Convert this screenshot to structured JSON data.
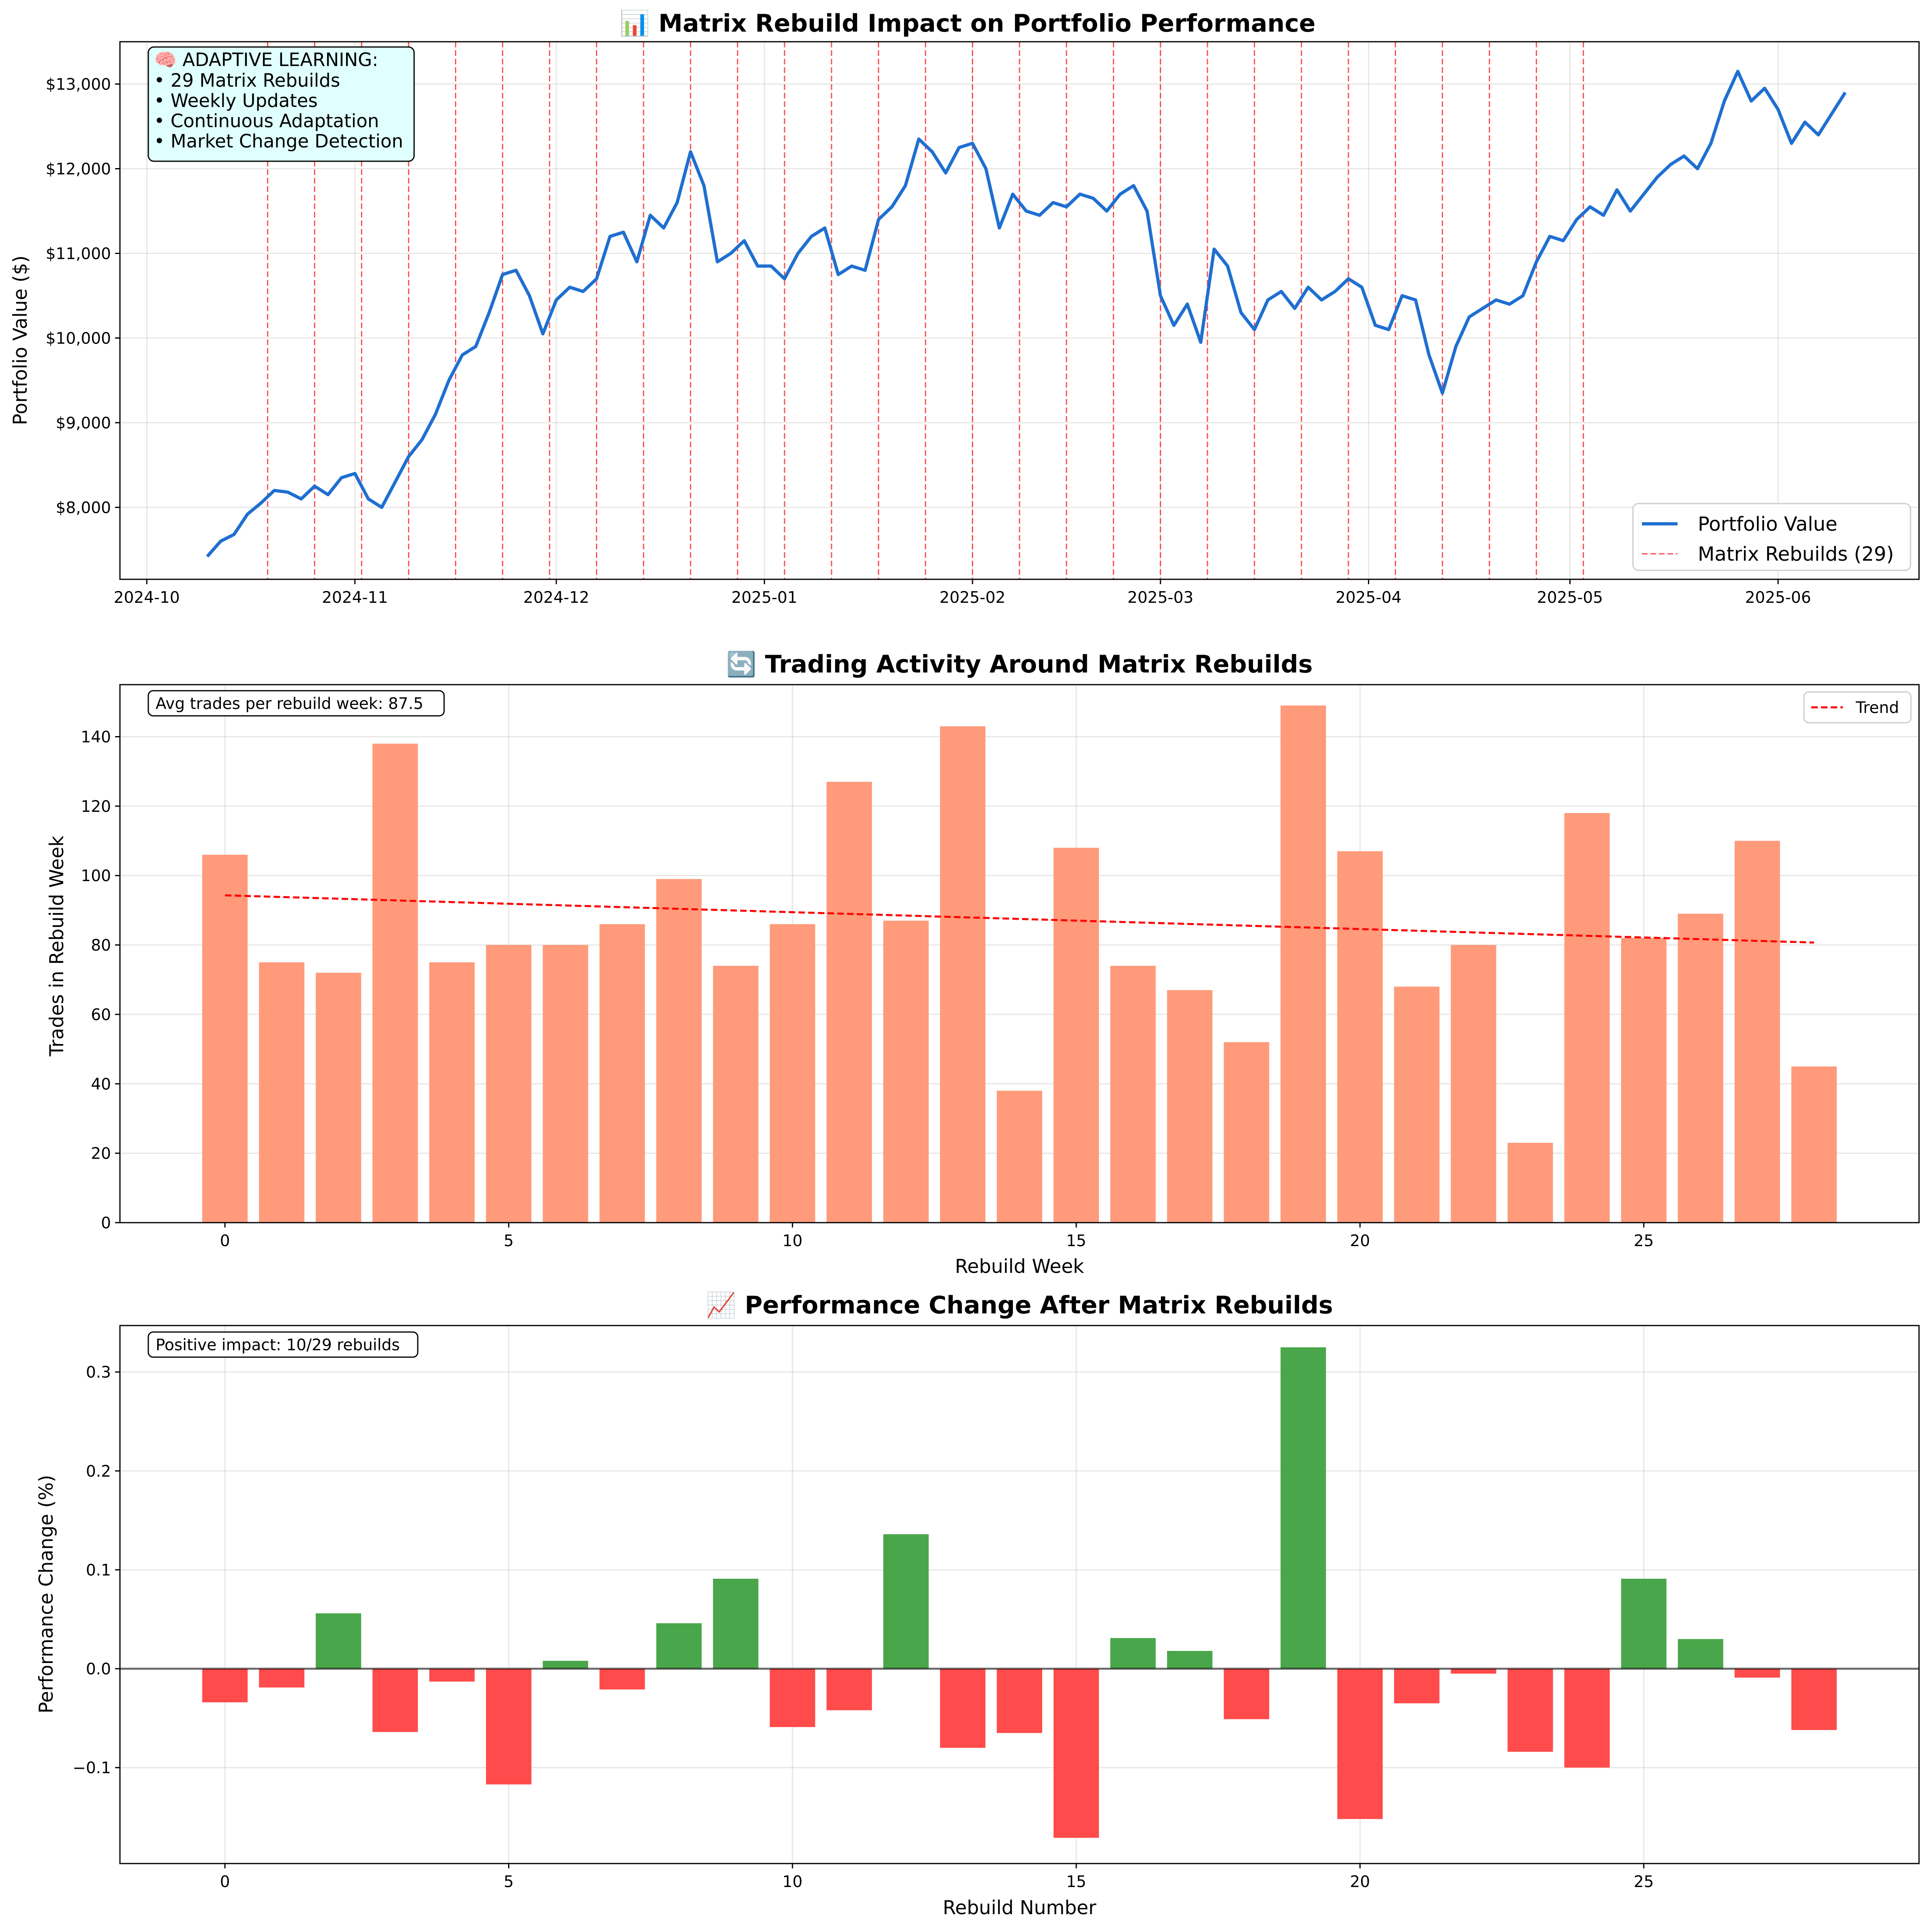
{
  "colors": {
    "portfolio_line": "#1f6fd1",
    "rebuild_line": "#ff0000",
    "trade_bar": "#ff9a7a",
    "trend_line": "#ff0000",
    "positive_bar": "#4aa64a",
    "negative_bar": "#ff4b4b",
    "info_box_fill": "#e0ffff",
    "zero_line": "#000000"
  },
  "chart_data": [
    {
      "type": "line",
      "title": "📊 Matrix Rebuild Impact on Portfolio Performance",
      "xlabel": "",
      "ylabel": "Portfolio Value ($)",
      "xlim": [
        "2024-09-27",
        "2025-06-22"
      ],
      "ylim": [
        7150,
        13500
      ],
      "x_ticks": [
        {
          "date": "2024-10-01",
          "label": "2024-10"
        },
        {
          "date": "2024-11-01",
          "label": "2024-11"
        },
        {
          "date": "2024-12-01",
          "label": "2024-12"
        },
        {
          "date": "2025-01-01",
          "label": "2025-01"
        },
        {
          "date": "2025-02-01",
          "label": "2025-02"
        },
        {
          "date": "2025-03-01",
          "label": "2025-03"
        },
        {
          "date": "2025-04-01",
          "label": "2025-04"
        },
        {
          "date": "2025-05-01",
          "label": "2025-05"
        },
        {
          "date": "2025-06-01",
          "label": "2025-06"
        }
      ],
      "y_ticks": [
        {
          "value": 8000,
          "label": "$8,000"
        },
        {
          "value": 9000,
          "label": "$9,000"
        },
        {
          "value": 10000,
          "label": "$10,000"
        },
        {
          "value": 11000,
          "label": "$11,000"
        },
        {
          "value": 12000,
          "label": "$12,000"
        },
        {
          "value": 13000,
          "label": "$13,000"
        }
      ],
      "series": [
        {
          "name": "Portfolio Value",
          "points": [
            [
              "2024-10-10",
              7420
            ],
            [
              "2024-10-12",
              7600
            ],
            [
              "2024-10-14",
              7680
            ],
            [
              "2024-10-16",
              7920
            ],
            [
              "2024-10-18",
              8050
            ],
            [
              "2024-10-20",
              8200
            ],
            [
              "2024-10-22",
              8180
            ],
            [
              "2024-10-24",
              8100
            ],
            [
              "2024-10-26",
              8250
            ],
            [
              "2024-10-28",
              8150
            ],
            [
              "2024-10-30",
              8350
            ],
            [
              "2024-11-01",
              8400
            ],
            [
              "2024-11-03",
              8100
            ],
            [
              "2024-11-05",
              8000
            ],
            [
              "2024-11-07",
              8300
            ],
            [
              "2024-11-09",
              8600
            ],
            [
              "2024-11-11",
              8800
            ],
            [
              "2024-11-13",
              9100
            ],
            [
              "2024-11-15",
              9500
            ],
            [
              "2024-11-17",
              9800
            ],
            [
              "2024-11-19",
              9900
            ],
            [
              "2024-11-21",
              10300
            ],
            [
              "2024-11-23",
              10750
            ],
            [
              "2024-11-25",
              10800
            ],
            [
              "2024-11-27",
              10500
            ],
            [
              "2024-11-29",
              10050
            ],
            [
              "2024-12-01",
              10450
            ],
            [
              "2024-12-03",
              10600
            ],
            [
              "2024-12-05",
              10550
            ],
            [
              "2024-12-07",
              10700
            ],
            [
              "2024-12-09",
              11200
            ],
            [
              "2024-12-11",
              11250
            ],
            [
              "2024-12-13",
              10900
            ],
            [
              "2024-12-15",
              11450
            ],
            [
              "2024-12-17",
              11300
            ],
            [
              "2024-12-19",
              11600
            ],
            [
              "2024-12-21",
              12200
            ],
            [
              "2024-12-23",
              11800
            ],
            [
              "2024-12-25",
              10900
            ],
            [
              "2024-12-27",
              11000
            ],
            [
              "2024-12-29",
              11150
            ],
            [
              "2024-12-31",
              10850
            ],
            [
              "2025-01-02",
              10850
            ],
            [
              "2025-01-04",
              10700
            ],
            [
              "2025-01-06",
              11000
            ],
            [
              "2025-01-08",
              11200
            ],
            [
              "2025-01-10",
              11300
            ],
            [
              "2025-01-12",
              10750
            ],
            [
              "2025-01-14",
              10850
            ],
            [
              "2025-01-16",
              10800
            ],
            [
              "2025-01-18",
              11400
            ],
            [
              "2025-01-20",
              11550
            ],
            [
              "2025-01-22",
              11800
            ],
            [
              "2025-01-24",
              12350
            ],
            [
              "2025-01-26",
              12200
            ],
            [
              "2025-01-28",
              11950
            ],
            [
              "2025-01-30",
              12250
            ],
            [
              "2025-02-01",
              12300
            ],
            [
              "2025-02-03",
              12000
            ],
            [
              "2025-02-05",
              11300
            ],
            [
              "2025-02-07",
              11700
            ],
            [
              "2025-02-09",
              11500
            ],
            [
              "2025-02-11",
              11450
            ],
            [
              "2025-02-13",
              11600
            ],
            [
              "2025-02-15",
              11550
            ],
            [
              "2025-02-17",
              11700
            ],
            [
              "2025-02-19",
              11650
            ],
            [
              "2025-02-21",
              11500
            ],
            [
              "2025-02-23",
              11700
            ],
            [
              "2025-02-25",
              11800
            ],
            [
              "2025-02-27",
              11500
            ],
            [
              "2025-03-01",
              10500
            ],
            [
              "2025-03-03",
              10150
            ],
            [
              "2025-03-05",
              10400
            ],
            [
              "2025-03-07",
              9950
            ],
            [
              "2025-03-09",
              11050
            ],
            [
              "2025-03-11",
              10850
            ],
            [
              "2025-03-13",
              10300
            ],
            [
              "2025-03-15",
              10100
            ],
            [
              "2025-03-17",
              10450
            ],
            [
              "2025-03-19",
              10550
            ],
            [
              "2025-03-21",
              10350
            ],
            [
              "2025-03-23",
              10600
            ],
            [
              "2025-03-25",
              10450
            ],
            [
              "2025-03-27",
              10550
            ],
            [
              "2025-03-29",
              10700
            ],
            [
              "2025-03-31",
              10600
            ],
            [
              "2025-04-02",
              10150
            ],
            [
              "2025-04-04",
              10100
            ],
            [
              "2025-04-06",
              10500
            ],
            [
              "2025-04-08",
              10450
            ],
            [
              "2025-04-10",
              9800
            ],
            [
              "2025-04-12",
              9350
            ],
            [
              "2025-04-14",
              9900
            ],
            [
              "2025-04-16",
              10250
            ],
            [
              "2025-04-18",
              10350
            ],
            [
              "2025-04-20",
              10450
            ],
            [
              "2025-04-22",
              10400
            ],
            [
              "2025-04-24",
              10500
            ],
            [
              "2025-04-26",
              10900
            ],
            [
              "2025-04-28",
              11200
            ],
            [
              "2025-04-30",
              11150
            ],
            [
              "2025-05-02",
              11400
            ],
            [
              "2025-05-04",
              11550
            ],
            [
              "2025-05-06",
              11450
            ],
            [
              "2025-05-08",
              11750
            ],
            [
              "2025-05-10",
              11500
            ],
            [
              "2025-05-12",
              11700
            ],
            [
              "2025-05-14",
              11900
            ],
            [
              "2025-05-16",
              12050
            ],
            [
              "2025-05-18",
              12150
            ],
            [
              "2025-05-20",
              12000
            ],
            [
              "2025-05-22",
              12300
            ],
            [
              "2025-05-24",
              12800
            ],
            [
              "2025-05-26",
              13150
            ],
            [
              "2025-05-28",
              12800
            ],
            [
              "2025-05-30",
              12950
            ],
            [
              "2025-06-01",
              12700
            ],
            [
              "2025-06-03",
              12300
            ],
            [
              "2025-06-05",
              12550
            ],
            [
              "2025-06-07",
              12400
            ],
            [
              "2025-06-09",
              12650
            ],
            [
              "2025-06-11",
              12900
            ]
          ]
        },
        {
          "name": "Matrix Rebuilds (29)",
          "dates": [
            "2024-10-19",
            "2024-10-26",
            "2024-11-02",
            "2024-11-09",
            "2024-11-16",
            "2024-11-23",
            "2024-11-30",
            "2024-12-07",
            "2024-12-14",
            "2024-12-21",
            "2024-12-28",
            "2025-01-04",
            "2025-01-11",
            "2025-01-18",
            "2025-01-25",
            "2025-02-01",
            "2025-02-08",
            "2025-02-15",
            "2025-02-22",
            "2025-03-01",
            "2025-03-08",
            "2025-03-15",
            "2025-03-22",
            "2025-03-29",
            "2025-04-05",
            "2025-04-12",
            "2025-04-19",
            "2025-04-26",
            "2025-05-03"
          ]
        }
      ],
      "legend": [
        "Portfolio Value",
        "Matrix Rebuilds (29)"
      ],
      "legend_position": "lower-right",
      "grid": true
    },
    {
      "type": "bar",
      "title": "🔄 Trading Activity Around Matrix Rebuilds",
      "xlabel": "Rebuild Week",
      "ylabel": "Trades in Rebuild Week",
      "xlim": [
        -1.85,
        29.85
      ],
      "ylim": [
        0,
        155
      ],
      "x_ticks": [
        0,
        5,
        10,
        15,
        20,
        25
      ],
      "y_ticks": [
        0,
        20,
        40,
        60,
        80,
        100,
        120,
        140
      ],
      "categories": [
        0,
        1,
        2,
        3,
        4,
        5,
        6,
        7,
        8,
        9,
        10,
        11,
        12,
        13,
        14,
        15,
        16,
        17,
        18,
        19,
        20,
        21,
        22,
        23,
        24,
        25,
        26,
        27,
        28
      ],
      "values": [
        106,
        75,
        72,
        138,
        75,
        80,
        80,
        86,
        99,
        74,
        86,
        127,
        87,
        143,
        38,
        108,
        74,
        67,
        52,
        149,
        107,
        68,
        80,
        23,
        118,
        82,
        89,
        110,
        45
      ],
      "trend": {
        "name": "Trend",
        "start": [
          0,
          94.3
        ],
        "end": [
          28,
          80.7
        ]
      },
      "legend_position": "top-right",
      "grid": true
    },
    {
      "type": "bar",
      "title": "📈 Performance Change After Matrix Rebuilds",
      "xlabel": "Rebuild Number",
      "ylabel": "Performance Change (%)",
      "xlim": [
        -1.85,
        29.85
      ],
      "ylim": [
        -0.197,
        0.347
      ],
      "x_ticks": [
        0,
        5,
        10,
        15,
        20,
        25
      ],
      "y_ticks": [
        -0.1,
        0.0,
        0.1,
        0.2,
        0.3
      ],
      "categories": [
        0,
        1,
        2,
        3,
        4,
        5,
        6,
        7,
        8,
        9,
        10,
        11,
        12,
        13,
        14,
        15,
        16,
        17,
        18,
        19,
        20,
        21,
        22,
        23,
        24,
        25,
        26,
        27,
        28
      ],
      "values": [
        -0.034,
        -0.019,
        0.056,
        -0.064,
        -0.013,
        -0.117,
        0.008,
        -0.021,
        0.046,
        0.091,
        -0.059,
        -0.042,
        0.136,
        -0.08,
        -0.065,
        -0.171,
        0.031,
        0.018,
        -0.051,
        0.325,
        -0.152,
        -0.035,
        -0.005,
        -0.084,
        -0.1,
        0.091,
        0.03,
        -0.009,
        -0.062
      ],
      "grid": true
    }
  ],
  "panel1": {
    "info_lines": [
      "🧠 ADAPTIVE LEARNING:",
      "• 29 Matrix Rebuilds",
      "• Weekly Updates",
      "• Continuous Adaptation",
      "• Market Change Detection"
    ]
  },
  "panel2": {
    "note": "Avg trades per rebuild week: 87.5"
  },
  "panel3": {
    "note": "Positive impact: 10/29 rebuilds"
  }
}
